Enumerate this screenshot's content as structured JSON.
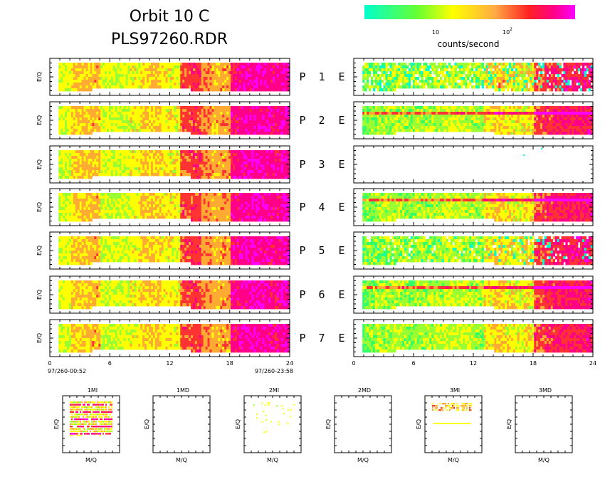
{
  "header": {
    "title_line1": "Orbit  10  C",
    "title_line2": "PLS97260.RDR"
  },
  "colorbar": {
    "tick_10": "10",
    "tick_100_base": "10",
    "tick_100_exp": "2",
    "unit_label": "counts/second",
    "colors": [
      "#00ffcc",
      "#33ff66",
      "#99ff33",
      "#ffff00",
      "#ffaa33",
      "#ff3333",
      "#ff0088",
      "#ff00ff"
    ]
  },
  "y_label": "E/Q",
  "x_label_mq": "M/Q",
  "time_start": "97/260-00:52",
  "time_end": "97/260-23:58",
  "channels": [
    {
      "p": "P",
      "n": "1",
      "e": "E"
    },
    {
      "p": "P",
      "n": "2",
      "e": "E"
    },
    {
      "p": "P",
      "n": "3",
      "e": "E"
    },
    {
      "p": "P",
      "n": "4",
      "e": "E"
    },
    {
      "p": "P",
      "n": "5",
      "e": "E"
    },
    {
      "p": "P",
      "n": "6",
      "e": "E"
    },
    {
      "p": "P",
      "n": "7",
      "e": "E"
    }
  ],
  "chart_data": {
    "type": "heatmap",
    "x_ticks": [
      "0",
      "6",
      "12",
      "18",
      "24"
    ],
    "xlim": [
      0,
      24
    ],
    "x_unit_hours": true,
    "data_start_hour": 0.87,
    "data_end_hour": 23.97,
    "p_level_by_hour": [
      0.38,
      0.4,
      0.5,
      0.52,
      0.55,
      0.38,
      0.36,
      0.38,
      0.42,
      0.5,
      0.52,
      0.45,
      0.42,
      0.7,
      0.72,
      0.6,
      0.55,
      0.58,
      0.85,
      0.88,
      0.9,
      0.88,
      0.86,
      0.9
    ],
    "e_level_by_hour": [
      0.2,
      0.25,
      0.3,
      0.3,
      0.32,
      0.28,
      0.3,
      0.3,
      0.32,
      0.35,
      0.35,
      0.32,
      0.3,
      0.45,
      0.5,
      0.45,
      0.42,
      0.45,
      0.7,
      0.75,
      0.78,
      0.8,
      0.8,
      0.82
    ],
    "p3_e_status": "mostly empty",
    "mq_panels": [
      "1MI",
      "1MD",
      "2MI",
      "2MD",
      "3MI",
      "3MD"
    ]
  }
}
